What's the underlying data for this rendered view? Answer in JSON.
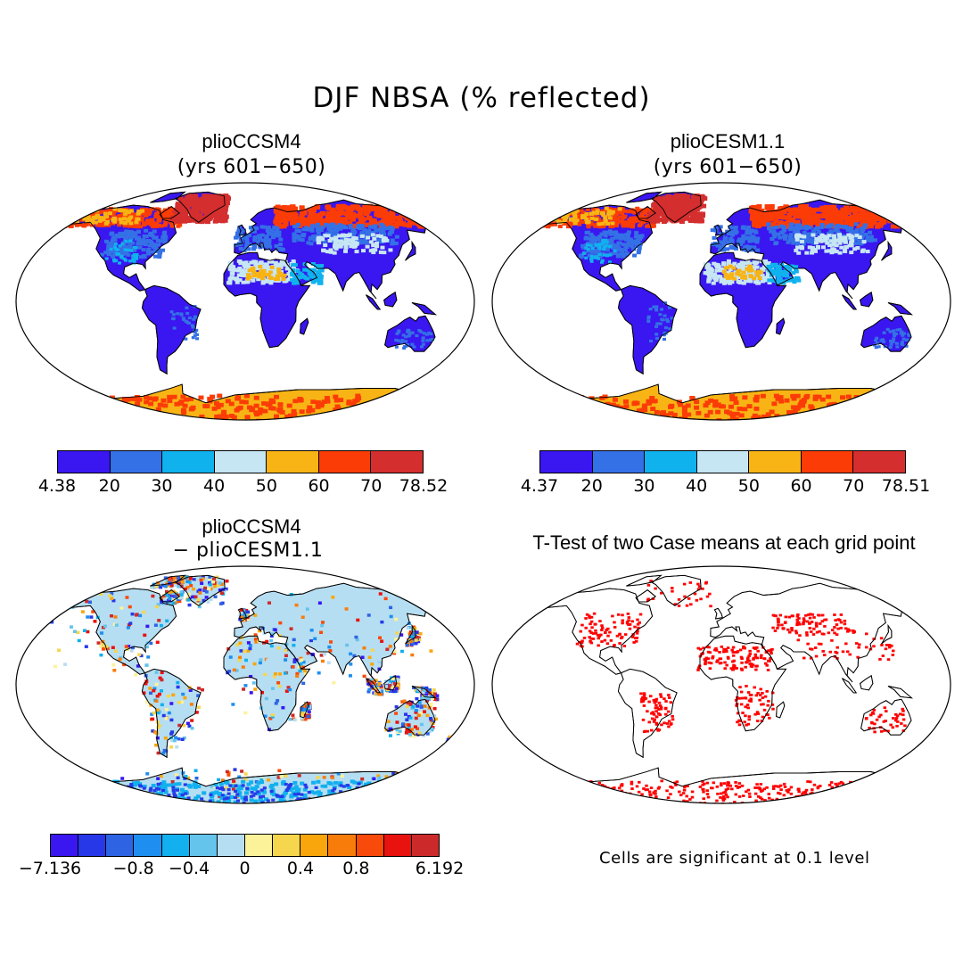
{
  "title": "DJF NBSA (% reflected)",
  "panels": {
    "top_left": {
      "title": "plioCCSM4",
      "subtitle": "(yrs 601−650)"
    },
    "top_right": {
      "title": "plioCESM1.1",
      "subtitle": "(yrs 601−650)"
    },
    "bottom_left": {
      "title": "plioCCSM4",
      "subtitle": "− plioCESM1.1"
    },
    "bottom_right": {
      "title": "T-Test of two Case means at each grid point",
      "note": "Cells are significant at 0.1 level"
    }
  },
  "colorbars": {
    "left": {
      "colors": [
        "#3a16f0",
        "#3470e6",
        "#10b2ee",
        "#c6e6f4",
        "#f8b414",
        "#fb3c07",
        "#d42e2e"
      ],
      "labels": [
        "4.38",
        "20",
        "30",
        "40",
        "50",
        "60",
        "70",
        "78.52"
      ]
    },
    "right": {
      "colors": [
        "#3a16f0",
        "#3470e6",
        "#10b2ee",
        "#c6e6f4",
        "#f8b414",
        "#fb3c07",
        "#d42e2e"
      ],
      "labels": [
        "4.37",
        "20",
        "30",
        "40",
        "50",
        "60",
        "70",
        "78.51"
      ]
    },
    "diff": {
      "colors": [
        "#3a16f0",
        "#2638e8",
        "#2e64e4",
        "#1e8ef0",
        "#12b0ee",
        "#64c4ec",
        "#b6def2",
        "#fcf29a",
        "#f6d64c",
        "#f8a60c",
        "#f87c0a",
        "#f84a0a",
        "#e8120e",
        "#cc2a2a"
      ],
      "labels": [
        "−7.136",
        "−0.8",
        "−0.4",
        "0",
        "0.4",
        "0.8",
        "6.192"
      ]
    }
  },
  "colors": {
    "land_base": "#3a16f0",
    "ice": "#f8b414",
    "arctic": "#fb3c07",
    "significant": "#ff0000",
    "diff_base": "#b6def2"
  }
}
